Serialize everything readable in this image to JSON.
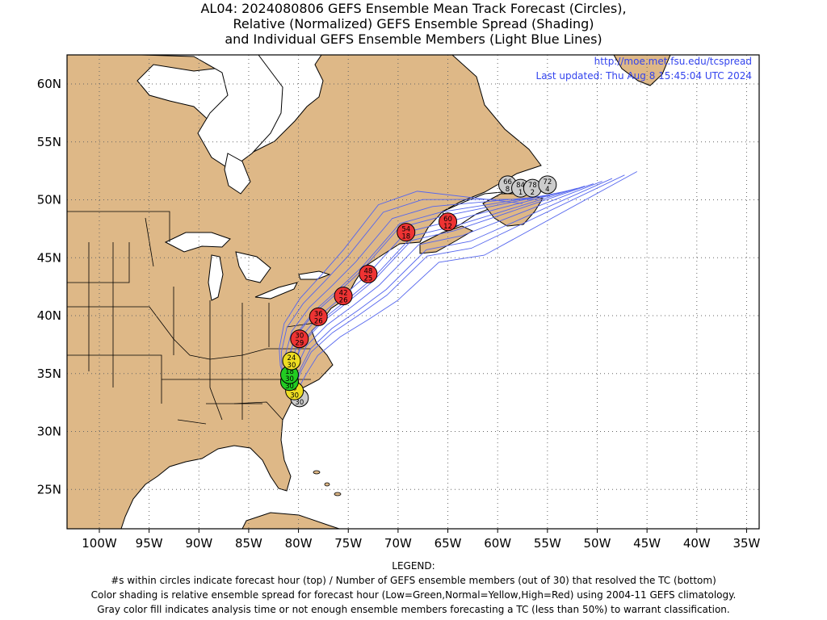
{
  "title_lines": [
    "AL04: 2024080806 GEFS Ensemble Mean Track Forecast (Circles),",
    "Relative (Normalized) GEFS Ensemble Spread (Shading)",
    "and Individual GEFS Ensemble Members (Light Blue Lines)"
  ],
  "credit": {
    "url": "http://moe.met.fsu.edu/tcspread",
    "updated": "Last updated: Thu Aug 8 15:45:04 UTC 2024"
  },
  "axes": {
    "lon_ticks": [
      "100W",
      "95W",
      "90W",
      "85W",
      "80W",
      "75W",
      "70W",
      "65W",
      "60W",
      "55W",
      "50W",
      "45W",
      "40W",
      "35W"
    ],
    "lat_ticks": [
      "60N",
      "55N",
      "50N",
      "45N",
      "40N",
      "35N",
      "30N",
      "25N"
    ],
    "grid": "dotted"
  },
  "legend": {
    "heading": "LEGEND:",
    "lines": [
      "#s within circles indicate forecast hour (top) / Number of GEFS ensemble members (out of 30) that resolved the TC (bottom)",
      "Color shading is relative ensemble spread for forecast hour (Low=Green,Normal=Yellow,High=Red) using 2004-11 GEFS climatology.",
      "Gray color fill indicates analysis time or not enough ensemble members forecasting a TC (less than 50%) to warrant classification."
    ]
  },
  "colors": {
    "land": "#deb887",
    "water": "#ffffff",
    "member_tracks": "#5566ee",
    "low": "#22cc22",
    "normal": "#eedd22",
    "high": "#ee3333",
    "gray": "#cccccc"
  },
  "chart_data": {
    "type": "map-track",
    "region_lon": [
      -103,
      -33
    ],
    "region_lat": [
      22,
      62.5
    ],
    "mean_track": [
      {
        "hour": "0",
        "members": "30",
        "lon": -79.9,
        "lat": 32.9,
        "spread": "gray"
      },
      {
        "hour": "6",
        "members": "30",
        "lon": -80.4,
        "lat": 33.5,
        "spread": "normal"
      },
      {
        "hour": "12",
        "members": "30",
        "lon": -80.9,
        "lat": 34.3,
        "spread": "low"
      },
      {
        "hour": "18",
        "members": "30",
        "lon": -80.9,
        "lat": 34.9,
        "spread": "low"
      },
      {
        "hour": "24",
        "members": "30",
        "lon": -80.7,
        "lat": 36.1,
        "spread": "normal"
      },
      {
        "hour": "30",
        "members": "29",
        "lon": -79.9,
        "lat": 38.0,
        "spread": "high"
      },
      {
        "hour": "36",
        "members": "26",
        "lon": -78.0,
        "lat": 39.9,
        "spread": "high"
      },
      {
        "hour": "42",
        "members": "26",
        "lon": -75.5,
        "lat": 41.7,
        "spread": "high"
      },
      {
        "hour": "48",
        "members": "25",
        "lon": -73.0,
        "lat": 43.6,
        "spread": "high"
      },
      {
        "hour": "54",
        "members": "18",
        "lon": -69.2,
        "lat": 47.2,
        "spread": "high"
      },
      {
        "hour": "60",
        "members": "12",
        "lon": -65.0,
        "lat": 48.1,
        "spread": "high"
      },
      {
        "hour": "66",
        "members": "8",
        "lon": -59.0,
        "lat": 51.3,
        "spread": "gray"
      },
      {
        "hour": "84",
        "members": "1",
        "lon": -57.7,
        "lat": 51.0,
        "spread": "gray"
      },
      {
        "hour": "78",
        "members": "2",
        "lon": -56.5,
        "lat": 51.0,
        "spread": "gray"
      },
      {
        "hour": "72",
        "members": "4",
        "lon": -55.0,
        "lat": 51.3,
        "spread": "gray"
      }
    ]
  }
}
